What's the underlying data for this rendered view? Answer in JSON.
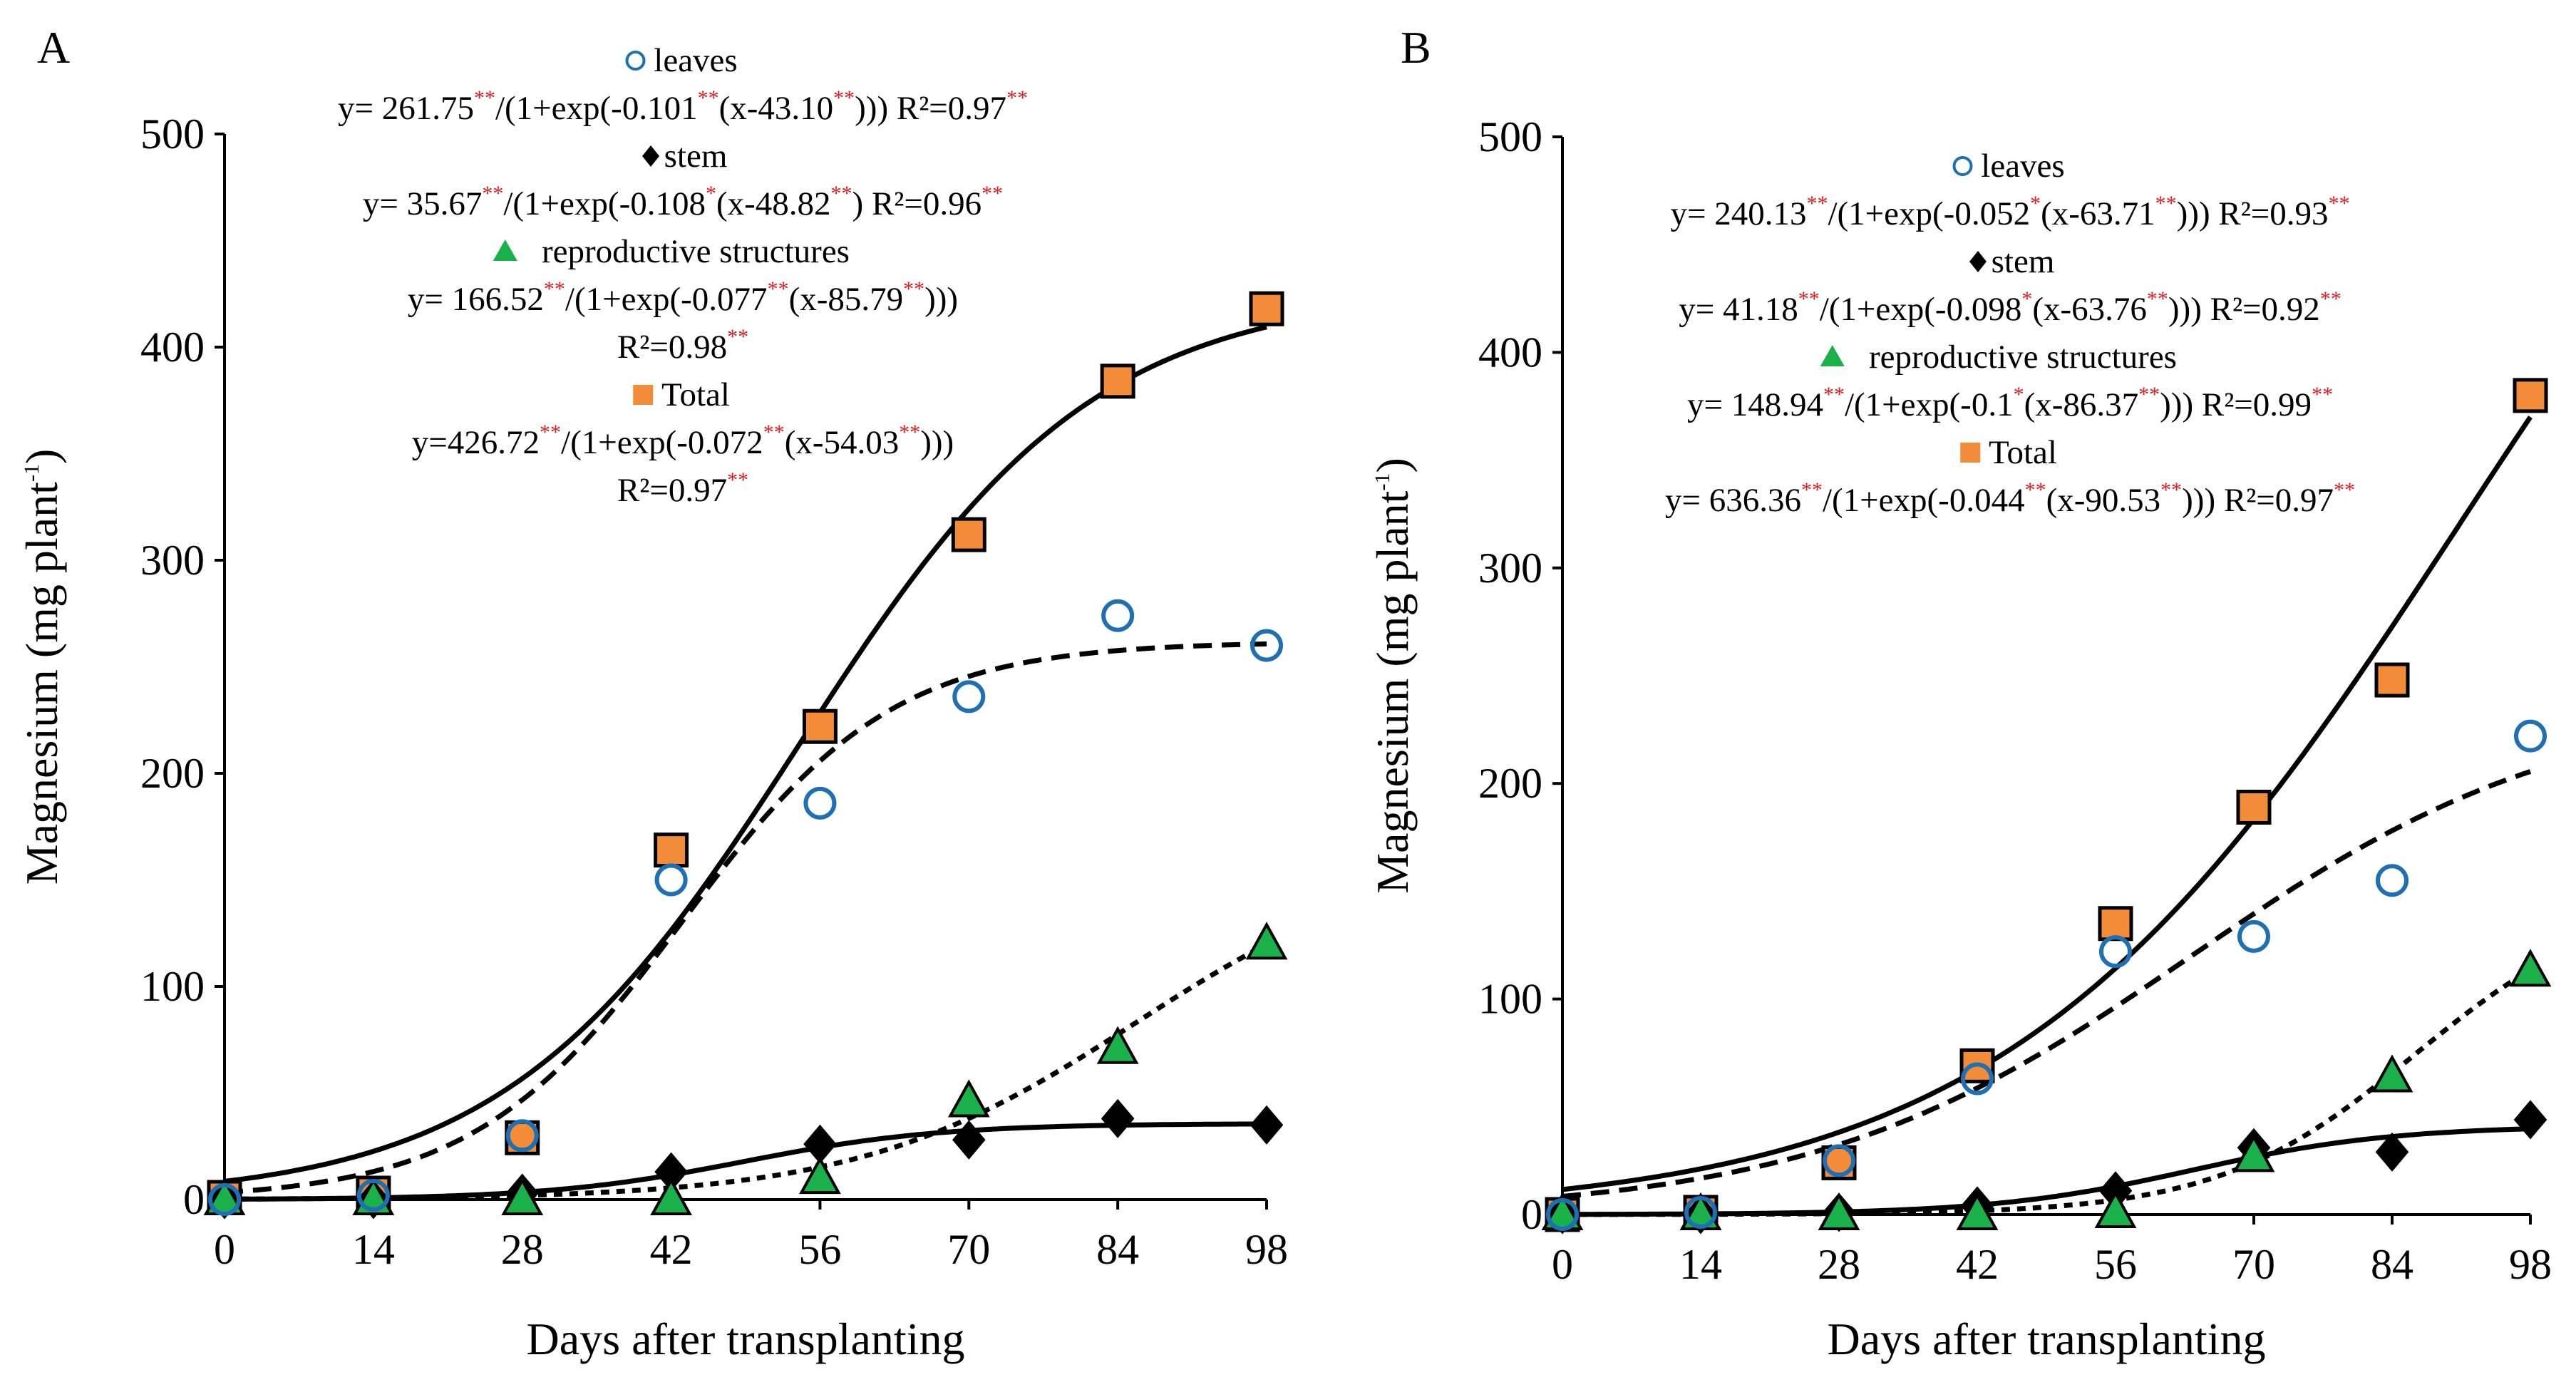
{
  "chart_data": [
    {
      "type": "scatter",
      "panel": "A",
      "xlabel": "Days after transplanting",
      "ylabel_main": "Magnesium  (mg plant",
      "ylabel_sup": "-1",
      "ylabel_end": ")",
      "xlim": [
        0,
        98
      ],
      "ylim": [
        0,
        500
      ],
      "xticks": [
        0,
        14,
        28,
        42,
        56,
        70,
        84,
        98
      ],
      "yticks": [
        0,
        100,
        200,
        300,
        400,
        500
      ],
      "grid": false,
      "series": [
        {
          "name": "leaves",
          "marker": "open-circle",
          "color": "#1f6fb4",
          "x": [
            0,
            14,
            28,
            42,
            56,
            70,
            84,
            98
          ],
          "y": [
            0,
            2,
            30,
            150,
            186,
            236,
            274,
            260
          ],
          "fit": {
            "a": 261.75,
            "b": 0.101,
            "c": 43.1,
            "style": "dashed"
          }
        },
        {
          "name": "stem",
          "marker": "diamond",
          "color": "#000000",
          "x": [
            0,
            14,
            28,
            42,
            56,
            70,
            84,
            98
          ],
          "y": [
            0,
            0,
            3,
            13,
            26,
            28,
            38,
            35
          ],
          "fit": {
            "a": 35.67,
            "b": 0.108,
            "c": 48.82,
            "style": "solid"
          }
        },
        {
          "name": "reproductive structures",
          "marker": "triangle",
          "color": "#1ab04a",
          "x": [
            0,
            14,
            28,
            42,
            56,
            70,
            84,
            98
          ],
          "y": [
            0,
            0,
            0,
            0,
            10,
            46,
            71,
            120
          ],
          "fit": {
            "a": 166.52,
            "b": 0.077,
            "c": 85.79,
            "style": "dotted"
          }
        },
        {
          "name": "Total",
          "marker": "square",
          "color": "#f28c38",
          "x": [
            0,
            14,
            28,
            42,
            56,
            70,
            84,
            98
          ],
          "y": [
            1,
            3,
            29,
            164,
            222,
            312,
            384,
            418
          ],
          "fit": {
            "a": 426.72,
            "b": 0.072,
            "c": 54.03,
            "style": "solid"
          }
        }
      ],
      "equations": [
        {
          "legend": "leaves",
          "marker": "open-circle",
          "lines": [
            [
              [
                "y= 261.75",
                "t"
              ],
              [
                "**",
                "s"
              ],
              [
                "/(1+exp(-0.101",
                "t"
              ],
              [
                "**",
                "s"
              ],
              [
                "(x-43.10",
                "t"
              ],
              [
                "**",
                "s"
              ],
              [
                ")))  R²=0.97",
                "t"
              ],
              [
                "**",
                "s"
              ]
            ]
          ]
        },
        {
          "legend": "stem",
          "marker": "diamond",
          "lines": [
            [
              [
                "y= 35.67",
                "t"
              ],
              [
                "**",
                "s"
              ],
              [
                "/(1+exp(-0.108",
                "t"
              ],
              [
                "*",
                "s"
              ],
              [
                "(x-48.82",
                "t"
              ],
              [
                "**",
                "s"
              ],
              [
                ")  R²=0.96",
                "t"
              ],
              [
                "**",
                "s"
              ]
            ]
          ]
        },
        {
          "legend": "reproductive structures",
          "marker": "triangle",
          "lines": [
            [
              [
                "y= 166.52",
                "t"
              ],
              [
                "**",
                "s"
              ],
              [
                "/(1+exp(-0.077",
                "t"
              ],
              [
                "**",
                "s"
              ],
              [
                "(x-85.79",
                "t"
              ],
              [
                "**",
                "s"
              ],
              [
                ")))",
                "t"
              ]
            ],
            [
              [
                "R²=0.98",
                "t"
              ],
              [
                "**",
                "s"
              ]
            ]
          ]
        },
        {
          "legend": "Total",
          "marker": "square",
          "lines": [
            [
              [
                "y=426.72",
                "t"
              ],
              [
                "**",
                "s"
              ],
              [
                "/(1+exp(-0.072",
                "t"
              ],
              [
                "**",
                "s"
              ],
              [
                "(x-54.03",
                "t"
              ],
              [
                "**",
                "s"
              ],
              [
                ")))",
                "t"
              ]
            ],
            [
              [
                "R²=0.97",
                "t"
              ],
              [
                "**",
                "s"
              ]
            ]
          ]
        }
      ]
    },
    {
      "type": "scatter",
      "panel": "B",
      "xlabel": "Days after transplanting",
      "ylabel_main": "Magnesium (mg plant",
      "ylabel_sup": "-1",
      "ylabel_end": ")",
      "xlim": [
        0,
        98
      ],
      "ylim": [
        0,
        500
      ],
      "xticks": [
        0,
        14,
        28,
        42,
        56,
        70,
        84,
        98
      ],
      "yticks": [
        0,
        100,
        200,
        300,
        400,
        500
      ],
      "grid": false,
      "series": [
        {
          "name": "leaves",
          "marker": "open-circle",
          "color": "#1f6fb4",
          "x": [
            0,
            14,
            28,
            42,
            56,
            70,
            84,
            98
          ],
          "y": [
            0,
            1,
            25,
            63,
            122,
            129,
            155,
            222
          ],
          "fit": {
            "a": 240.13,
            "b": 0.052,
            "c": 63.71,
            "style": "dashed"
          }
        },
        {
          "name": "stem",
          "marker": "diamond",
          "color": "#000000",
          "x": [
            0,
            14,
            28,
            42,
            56,
            70,
            84,
            98
          ],
          "y": [
            0,
            0,
            1,
            4,
            11,
            31,
            29,
            44
          ],
          "fit": {
            "a": 41.18,
            "b": 0.098,
            "c": 63.76,
            "style": "solid"
          }
        },
        {
          "name": "reproductive structures",
          "marker": "triangle",
          "color": "#1ab04a",
          "x": [
            0,
            14,
            28,
            42,
            56,
            70,
            84,
            98
          ],
          "y": [
            0,
            0,
            0,
            0,
            1,
            27,
            64,
            113
          ],
          "fit": {
            "a": 148.94,
            "b": 0.1,
            "c": 86.37,
            "style": "dotted"
          }
        },
        {
          "name": "Total",
          "marker": "square",
          "color": "#f28c38",
          "x": [
            0,
            14,
            28,
            42,
            56,
            70,
            84,
            98
          ],
          "y": [
            0,
            1,
            24,
            69,
            135,
            189,
            248,
            380
          ],
          "fit": {
            "a": 636.36,
            "b": 0.044,
            "c": 90.53,
            "style": "solid"
          }
        }
      ],
      "equations": [
        {
          "legend": "leaves",
          "marker": "open-circle",
          "lines": [
            [
              [
                "y= 240.13",
                "t"
              ],
              [
                "**",
                "s"
              ],
              [
                "/(1+exp(-0.052",
                "t"
              ],
              [
                "*",
                "s"
              ],
              [
                "(x-63.71",
                "t"
              ],
              [
                "**",
                "s"
              ],
              [
                "))) R²=0.93",
                "t"
              ],
              [
                "**",
                "s"
              ]
            ]
          ]
        },
        {
          "legend": "stem",
          "marker": "diamond",
          "lines": [
            [
              [
                "y= 41.18",
                "t"
              ],
              [
                "**",
                "s"
              ],
              [
                "/(1+exp(-0.098",
                "t"
              ],
              [
                "*",
                "s"
              ],
              [
                "(x-63.76",
                "t"
              ],
              [
                "**",
                "s"
              ],
              [
                "))) R²=0.92",
                "t"
              ],
              [
                "**",
                "s"
              ]
            ]
          ]
        },
        {
          "legend": "reproductive structures",
          "marker": "triangle",
          "lines": [
            [
              [
                "y= 148.94",
                "t"
              ],
              [
                "**",
                "s"
              ],
              [
                "/(1+exp(-0.1",
                "t"
              ],
              [
                "*",
                "s"
              ],
              [
                "(x-86.37",
                "t"
              ],
              [
                "**",
                "s"
              ],
              [
                "))) R²=0.99",
                "t"
              ],
              [
                "**",
                "s"
              ]
            ]
          ]
        },
        {
          "legend": "Total",
          "marker": "square",
          "lines": [
            [
              [
                "y= 636.36",
                "t"
              ],
              [
                "**",
                "s"
              ],
              [
                "/(1+exp(-0.044",
                "t"
              ],
              [
                "**",
                "s"
              ],
              [
                "(x-90.53",
                "t"
              ],
              [
                "**",
                "s"
              ],
              [
                "))) R²=0.97",
                "t"
              ],
              [
                "**",
                "s"
              ]
            ]
          ]
        }
      ]
    }
  ]
}
